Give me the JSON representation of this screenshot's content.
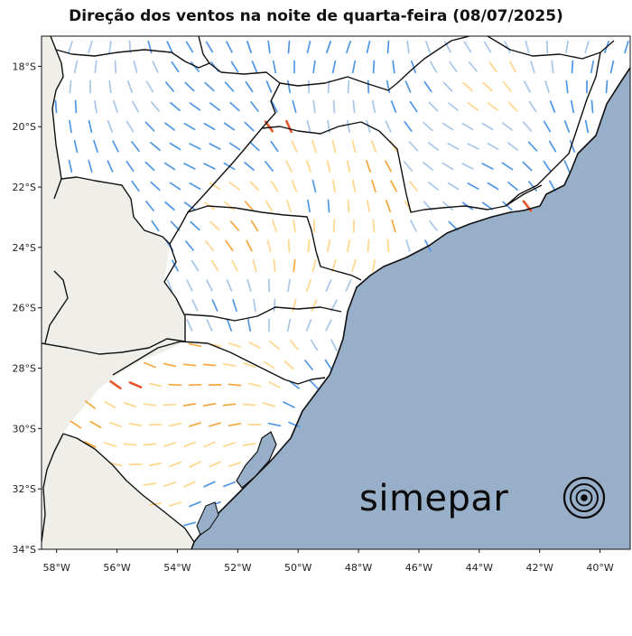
{
  "title": "Direção dos ventos na noite de quarta-feira (08/07/2025)",
  "brand": {
    "name": "simepar",
    "logo_icon": "concentric-rings-icon"
  },
  "axes": {
    "lat_labels": [
      "18°S",
      "20°S",
      "22°S",
      "24°S",
      "26°S",
      "28°S",
      "30°S",
      "32°S",
      "34°S"
    ],
    "lon_labels": [
      "58°W",
      "56°W",
      "54°W",
      "52°W",
      "50°W",
      "48°W",
      "46°W",
      "44°W",
      "42°W",
      "40°W"
    ],
    "lat_range": [
      -34,
      -17
    ],
    "lon_range": [
      -58.5,
      -39
    ]
  },
  "colors": {
    "ocean": "#97afc8",
    "land_outside": "#efeee8",
    "land_inside": "#ffffff",
    "wind_calm": "#4f96e6",
    "wind_light": "#a7c6ea",
    "wind_moderate": "#ffd58a",
    "wind_fresh": "#f5a73c",
    "wind_strong": "#e8542a"
  },
  "map_data": {
    "type": "wind-vector-map",
    "region": "Sul e Sudeste do Brasil",
    "wind_strong_points": [
      [
        -55.8,
        -28.5
      ],
      [
        -55.2,
        -28.8
      ],
      [
        -50.6,
        -19.9
      ],
      [
        -42.6,
        -22.8
      ],
      [
        -41.9,
        -22.7
      ]
    ]
  }
}
